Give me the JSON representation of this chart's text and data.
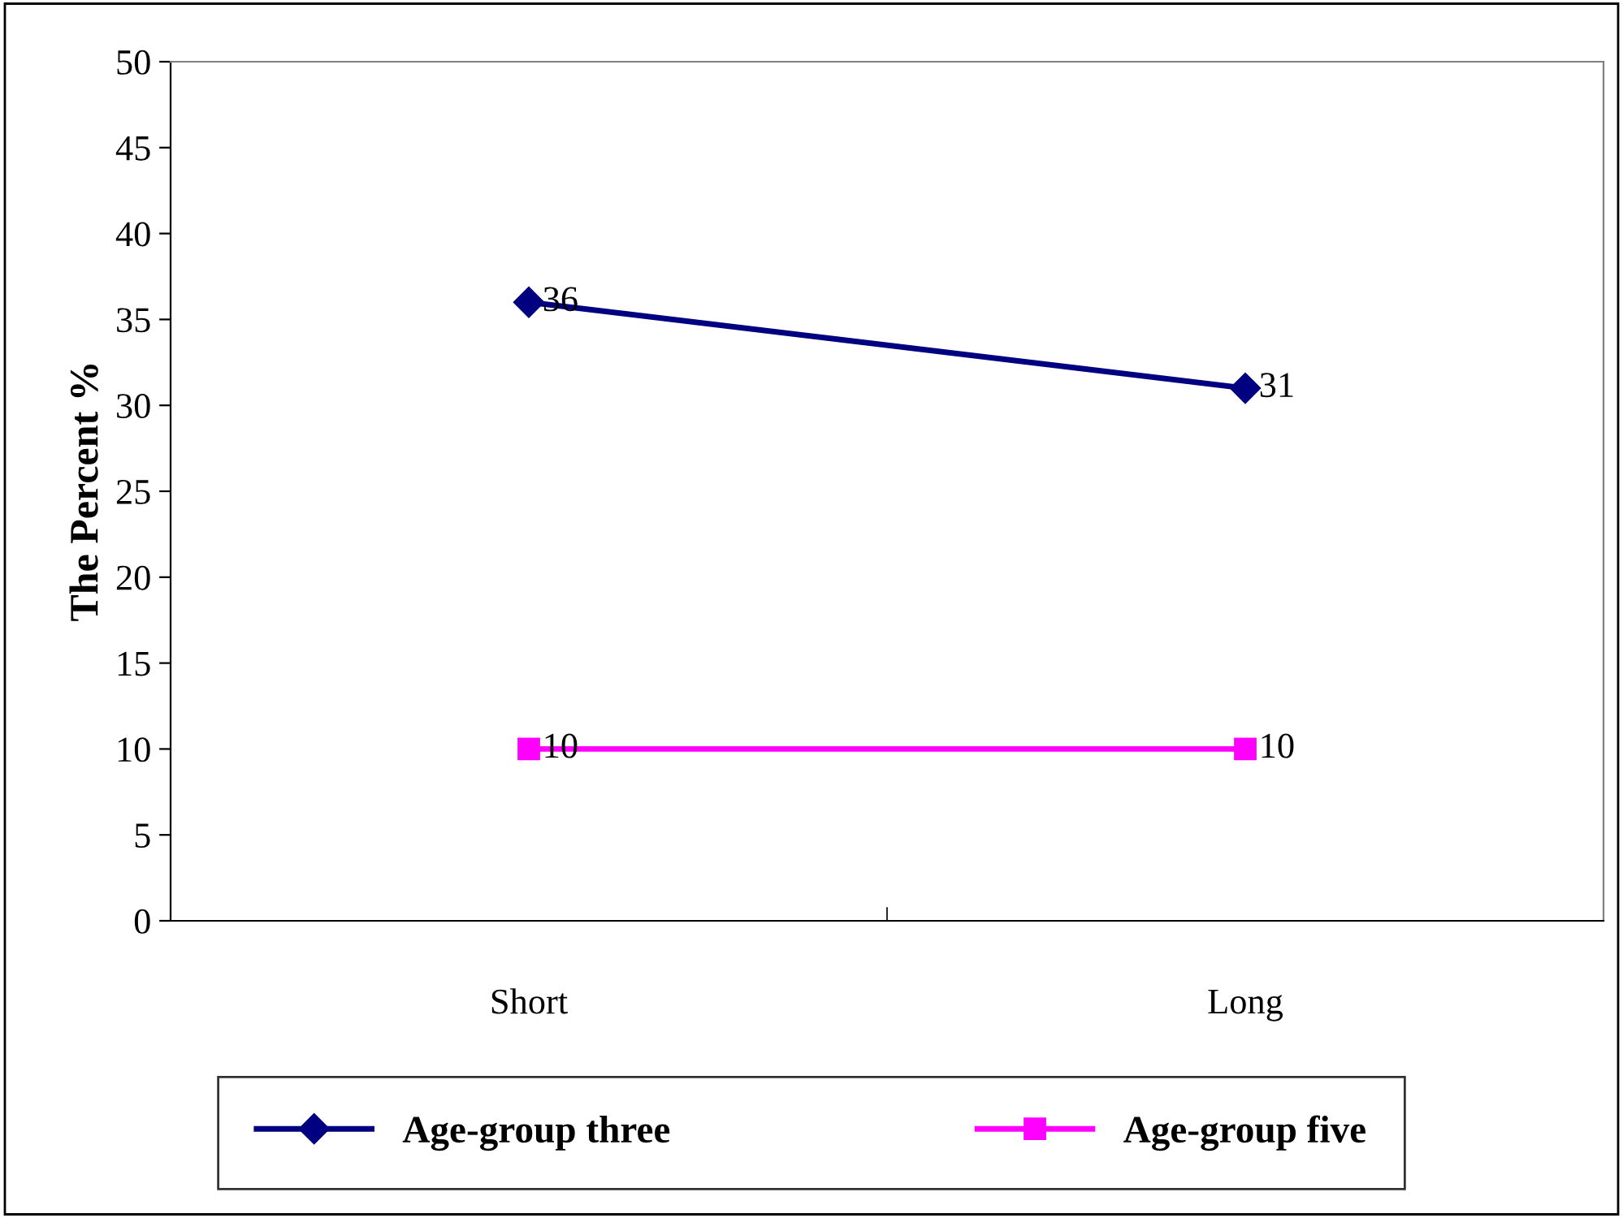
{
  "chart_data": {
    "type": "line",
    "ylabel": "The Percent %",
    "categories": [
      "Short",
      "Long"
    ],
    "series": [
      {
        "name": "Age-group three",
        "color": "#000080",
        "values": [
          36,
          31
        ],
        "marker": "diamond"
      },
      {
        "name": "Age-group five",
        "color": "#ff00ff",
        "values": [
          10,
          10
        ],
        "marker": "square"
      }
    ],
    "ylim": [
      0,
      50
    ],
    "yticks": [
      0,
      5,
      10,
      15,
      20,
      25,
      30,
      35,
      40,
      45,
      50
    ],
    "data_labels": true,
    "grid": false,
    "legend": "bottom",
    "line_style": "solid"
  }
}
